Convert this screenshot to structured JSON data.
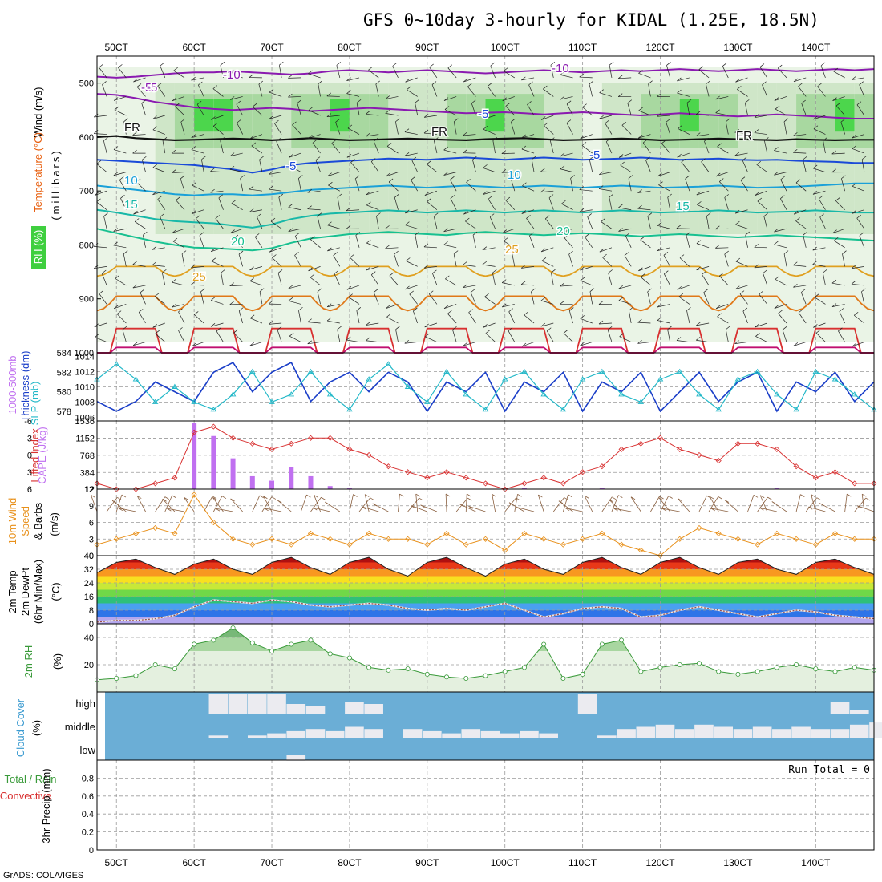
{
  "title": "GFS 0~10day 3-hourly for KIDAL (1.25E, 18.5N)",
  "footer": "GrADS: COLA/IGES",
  "run_total_label": "Run Total = 0",
  "x_ticks": [
    "50CT",
    "60CT",
    "70CT",
    "80CT",
    "90CT",
    "100CT",
    "110CT",
    "120CT",
    "130CT",
    "140CT"
  ],
  "x_tick_hours": [
    6,
    30,
    54,
    78,
    102,
    126,
    150,
    174,
    198,
    222
  ],
  "panel_labels": {
    "upper_wind": "Wind (m/s)",
    "upper_temp": "Temperature (°C)",
    "upper_rh": "RH (%)",
    "upper_pressure": "(millibars)",
    "thick_a": "1000-500mb",
    "thick_b": "Thickness (dm)",
    "slp": "SLP (mb)",
    "li": "Lifted Index",
    "cape": "CAPE (J/kg)",
    "wind10_a": "10m Wind",
    "wind10_b": "Speed",
    "wind10_c": "& Barbs",
    "wind10_d": "(m/s)",
    "t2m_a": "2m Temp",
    "t2m_b": "2m DewPt",
    "t2m_c": "(6hr Min/Max)",
    "t2m_d": "(°C)",
    "rh2_a": "2m RH",
    "rh2_b": "(%)",
    "cloud_a": "Cloud Cover",
    "cloud_b": "(%)",
    "precip_a": "Total / Rain",
    "precip_b": "Convective",
    "precip_c": "3hr Precip (mm)"
  },
  "colors": {
    "thickness": "#1a3ec8",
    "slp": "#22b8c8",
    "li": "#d83030",
    "cape": "#c070f0",
    "wind_speed": "#e8901a",
    "wind_barb": "#8a6040",
    "rh2": "#3a9a3a",
    "cloud_bg": "#6baed6",
    "cloud_fill": "#ebebf0"
  },
  "chart_data": [
    {
      "panel": "upper_air_cross_section",
      "type": "heatmap",
      "title": "Wind (m/s), Temperature (°C), RH (%)",
      "ylabel": "millibars",
      "y_ticks": [
        500,
        600,
        700,
        800,
        900,
        1000
      ],
      "ylim": [
        450,
        1000
      ],
      "isotherm_labels": [
        "-10",
        "-10",
        "-5",
        "-5",
        "-5",
        "-5",
        "FR",
        "FR",
        "FR",
        "-5",
        "5",
        "5",
        "10",
        "10",
        "10",
        "15",
        "15",
        "20",
        "20",
        "25",
        "25"
      ],
      "temperature_levels_hpa": {
        "-10": [
          488,
          490,
          488,
          485,
          482,
          480,
          480,
          478,
          480,
          482,
          484,
          482,
          478,
          476,
          478,
          480,
          478,
          476,
          478,
          480,
          482,
          480,
          478,
          476,
          478,
          480,
          478,
          476,
          478,
          476,
          474,
          476,
          478,
          476,
          474,
          476,
          478,
          476,
          474,
          476,
          474
        ],
        "-5": [
          520,
          522,
          528,
          535,
          540,
          545,
          548,
          550,
          548,
          546,
          548,
          552,
          550,
          548,
          546,
          548,
          550,
          552,
          554,
          556,
          555,
          554,
          556,
          558,
          556,
          554,
          556,
          558,
          560,
          558,
          556,
          558,
          560,
          562,
          560,
          558,
          560,
          562,
          564,
          566,
          566
        ],
        "FR": [
          600,
          598,
          602,
          604,
          606,
          605,
          604,
          603,
          604,
          606,
          604,
          602,
          604,
          606,
          605,
          604,
          603,
          604,
          605,
          606,
          604,
          603,
          602,
          604,
          606,
          605,
          604,
          603,
          604,
          606,
          605,
          604,
          603,
          604,
          605,
          606,
          604,
          605,
          606,
          605,
          605
        ],
        "5": [
          642,
          644,
          646,
          648,
          650,
          652,
          656,
          660,
          666,
          660,
          652,
          648,
          646,
          644,
          642,
          640,
          641,
          642,
          640,
          638,
          640,
          642,
          640,
          638,
          640,
          642,
          641,
          640,
          638,
          640,
          642,
          641,
          640,
          642,
          643,
          642,
          644,
          645,
          646,
          648,
          648
        ],
        "10": [
          690,
          694,
          698,
          702,
          706,
          708,
          706,
          706,
          708,
          706,
          702,
          698,
          696,
          694,
          692,
          690,
          692,
          694,
          692,
          690,
          692,
          694,
          692,
          690,
          692,
          694,
          692,
          690,
          692,
          694,
          693,
          692,
          690,
          692,
          694,
          693,
          692,
          690,
          688,
          686,
          686
        ],
        "15": [
          735,
          740,
          746,
          752,
          756,
          758,
          760,
          764,
          768,
          762,
          752,
          746,
          742,
          740,
          738,
          736,
          738,
          740,
          738,
          736,
          738,
          740,
          738,
          736,
          738,
          740,
          738,
          736,
          738,
          740,
          739,
          738,
          736,
          738,
          740,
          739,
          738,
          736,
          738,
          740,
          740
        ],
        "20": [
          770,
          778,
          786,
          794,
          800,
          805,
          806,
          808,
          810,
          806,
          796,
          788,
          784,
          780,
          778,
          776,
          778,
          780,
          782,
          778,
          776,
          778,
          780,
          782,
          780,
          778,
          780,
          782,
          784,
          782,
          780,
          782,
          784,
          786,
          784,
          782,
          784,
          786,
          788,
          790,
          792
        ]
      },
      "rh_percent": [
        40,
        45,
        50,
        60,
        70,
        80,
        75,
        70,
        65,
        60,
        65,
        70,
        75,
        70,
        65,
        60,
        55,
        60,
        65,
        70,
        75,
        70,
        65,
        60,
        55,
        50,
        55,
        60,
        65,
        70,
        75,
        70,
        65,
        60,
        55,
        60,
        65,
        70,
        75,
        70,
        65
      ]
    },
    {
      "panel": "thickness_slp",
      "type": "line",
      "x": [
        0,
        6,
        12,
        18,
        24,
        30,
        36,
        42,
        48,
        54,
        60,
        66,
        72,
        78,
        84,
        90,
        96,
        102,
        108,
        114,
        120,
        126,
        132,
        138,
        144,
        150,
        156,
        162,
        168,
        174,
        180,
        186,
        192,
        198,
        204,
        210,
        216,
        222,
        228,
        234,
        240
      ],
      "series": [
        {
          "name": "1000-500mb Thickness (dm)",
          "axis": "left",
          "ylim": [
            577,
            584
          ],
          "values": [
            579,
            578,
            579,
            581,
            580,
            579,
            582,
            583,
            580,
            582,
            583,
            579,
            581,
            582,
            580,
            582,
            581,
            578,
            581,
            580,
            582,
            578,
            581,
            580,
            582,
            578,
            581,
            580,
            582,
            578,
            580,
            582,
            579,
            581,
            582,
            578,
            581,
            580,
            582,
            579,
            581
          ]
        },
        {
          "name": "SLP (mb)",
          "axis": "right",
          "ylim": [
            1005.5,
            1014.5
          ],
          "values": [
            1011,
            1013,
            1011,
            1008,
            1010,
            1008,
            1007,
            1009,
            1012,
            1008,
            1009,
            1012,
            1009,
            1007,
            1011,
            1013,
            1010,
            1008,
            1012,
            1009,
            1007,
            1011,
            1012,
            1009,
            1007,
            1011,
            1012,
            1009,
            1008,
            1011,
            1012,
            1009,
            1007,
            1011,
            1012,
            1009,
            1007,
            1012,
            1011,
            1009,
            1007
          ]
        }
      ],
      "left_ticks": [
        578,
        580,
        582,
        584
      ],
      "right_ticks": [
        1006,
        1008,
        1010,
        1012,
        1014
      ]
    },
    {
      "panel": "lifted_index_cape",
      "type": "bar",
      "x": [
        0,
        6,
        12,
        18,
        24,
        30,
        36,
        42,
        48,
        54,
        60,
        66,
        72,
        78,
        84,
        90,
        96,
        102,
        108,
        114,
        120,
        126,
        132,
        138,
        144,
        150,
        156,
        162,
        168,
        174,
        180,
        186,
        192,
        198,
        204,
        210,
        216,
        222,
        228,
        234,
        240
      ],
      "series": [
        {
          "name": "Lifted Index",
          "type": "line",
          "ylim": [
            6,
            -6
          ],
          "values": [
            5,
            6,
            6,
            5,
            4,
            -4,
            -5,
            -3,
            -2,
            -1,
            -2,
            -3,
            -3,
            -1,
            0,
            2,
            3,
            4,
            3,
            4,
            5,
            6,
            5,
            4,
            5,
            3,
            2,
            -1,
            -2,
            -3,
            -1,
            0,
            1,
            -2,
            -2,
            -1,
            2,
            4,
            3,
            5,
            5
          ]
        },
        {
          "name": "CAPE (J/kg)",
          "type": "bar",
          "ylim": [
            12,
            1536
          ],
          "values": [
            0,
            0,
            0,
            0,
            0,
            1500,
            1200,
            700,
            300,
            200,
            500,
            300,
            80,
            30,
            10,
            0,
            0,
            0,
            0,
            0,
            0,
            0,
            30,
            0,
            0,
            0,
            40,
            0,
            0,
            0,
            20,
            0,
            0,
            0,
            0,
            40,
            0,
            0,
            20,
            0,
            0
          ]
        }
      ],
      "left_ticks": [
        -6,
        -3,
        0,
        3,
        6
      ],
      "right_ticks": [
        12,
        384,
        768,
        1152,
        1536
      ]
    },
    {
      "panel": "wind10m",
      "type": "line",
      "x": [
        0,
        6,
        12,
        18,
        24,
        30,
        36,
        42,
        48,
        54,
        60,
        66,
        72,
        78,
        84,
        90,
        96,
        102,
        108,
        114,
        120,
        126,
        132,
        138,
        144,
        150,
        156,
        162,
        168,
        174,
        180,
        186,
        192,
        198,
        204,
        210,
        216,
        222,
        228,
        234,
        240
      ],
      "ylabel": "m/s",
      "ylim": [
        0,
        12
      ],
      "y_ticks": [
        0,
        3,
        6,
        9,
        12
      ],
      "values": [
        2,
        3,
        4,
        5,
        4,
        11,
        6,
        3,
        2,
        3,
        2,
        4,
        3,
        2,
        4,
        3,
        3,
        2,
        4,
        2,
        3,
        1,
        4,
        3,
        2,
        3,
        4,
        2,
        1,
        0,
        3,
        5,
        4,
        3,
        2,
        4,
        3,
        2,
        4,
        3,
        3
      ]
    },
    {
      "panel": "temp2m_dewpoint",
      "type": "area",
      "x": [
        0,
        6,
        12,
        18,
        24,
        30,
        36,
        42,
        48,
        54,
        60,
        66,
        72,
        78,
        84,
        90,
        96,
        102,
        108,
        114,
        120,
        126,
        132,
        138,
        144,
        150,
        156,
        162,
        168,
        174,
        180,
        186,
        192,
        198,
        204,
        210,
        216,
        222,
        228,
        234,
        240
      ],
      "ylabel": "°C",
      "ylim": [
        0,
        40
      ],
      "y_ticks": [
        0,
        8,
        16,
        24,
        32,
        40
      ],
      "series": [
        {
          "name": "2m Temp",
          "values": [
            30,
            36,
            38,
            33,
            29,
            35,
            38,
            32,
            29,
            36,
            39,
            33,
            29,
            36,
            39,
            32,
            28,
            36,
            39,
            33,
            28,
            35,
            38,
            32,
            29,
            36,
            39,
            33,
            29,
            36,
            39,
            33,
            29,
            36,
            38,
            32,
            29,
            36,
            38,
            33,
            29
          ]
        },
        {
          "name": "2m DewPt",
          "values": [
            1,
            2,
            2,
            3,
            5,
            10,
            14,
            13,
            12,
            14,
            13,
            11,
            10,
            11,
            12,
            11,
            9,
            8,
            9,
            8,
            10,
            12,
            8,
            4,
            6,
            9,
            10,
            9,
            4,
            5,
            8,
            10,
            8,
            6,
            4,
            6,
            8,
            7,
            5,
            4,
            3
          ]
        }
      ]
    },
    {
      "panel": "rh2m",
      "type": "line",
      "x": [
        0,
        6,
        12,
        18,
        24,
        30,
        36,
        42,
        48,
        54,
        60,
        66,
        72,
        78,
        84,
        90,
        96,
        102,
        108,
        114,
        120,
        126,
        132,
        138,
        144,
        150,
        156,
        162,
        168,
        174,
        180,
        186,
        192,
        198,
        204,
        210,
        216,
        222,
        228,
        234,
        240
      ],
      "ylabel": "%",
      "ylim": [
        0,
        50
      ],
      "y_ticks": [
        20,
        40
      ],
      "values": [
        9,
        10,
        12,
        20,
        17,
        35,
        38,
        47,
        36,
        30,
        35,
        38,
        28,
        25,
        18,
        16,
        17,
        13,
        11,
        10,
        12,
        15,
        18,
        35,
        10,
        13,
        35,
        38,
        15,
        18,
        20,
        21,
        15,
        13,
        15,
        18,
        20,
        17,
        15,
        18,
        16
      ]
    },
    {
      "panel": "cloud_cover",
      "type": "heatmap",
      "ylabel": "%",
      "levels": [
        "high",
        "middle",
        "low"
      ],
      "x": [
        0,
        6,
        12,
        18,
        24,
        30,
        36,
        42,
        48,
        54,
        60,
        66,
        72,
        78,
        84,
        90,
        96,
        102,
        108,
        114,
        120,
        126,
        132,
        138,
        144,
        150,
        156,
        162,
        168,
        174,
        180,
        186,
        192,
        198,
        204,
        210,
        216,
        222,
        228,
        234,
        240
      ],
      "high": [
        0,
        0,
        0,
        0,
        0,
        0,
        100,
        100,
        100,
        100,
        50,
        40,
        0,
        60,
        50,
        0,
        0,
        0,
        0,
        0,
        0,
        0,
        0,
        0,
        0,
        100,
        0,
        0,
        0,
        0,
        0,
        0,
        0,
        0,
        0,
        0,
        0,
        0,
        60,
        20,
        0
      ],
      "middle": [
        0,
        0,
        0,
        0,
        0,
        0,
        10,
        0,
        10,
        20,
        30,
        40,
        30,
        50,
        40,
        0,
        40,
        30,
        20,
        40,
        30,
        20,
        30,
        20,
        0,
        0,
        10,
        40,
        50,
        60,
        40,
        60,
        50,
        40,
        50,
        40,
        50,
        40,
        40,
        60,
        70
      ],
      "low": [
        0,
        0,
        0,
        0,
        0,
        0,
        0,
        0,
        0,
        0,
        30,
        0,
        0,
        0,
        0,
        0,
        0,
        0,
        0,
        0,
        0,
        0,
        0,
        0,
        0,
        0,
        0,
        0,
        0,
        0,
        0,
        0,
        0,
        0,
        0,
        0,
        0,
        0,
        0,
        0,
        0
      ]
    },
    {
      "panel": "precip3hr",
      "type": "bar",
      "ylabel": "3hr Precip (mm)",
      "ylim": [
        0,
        1
      ],
      "y_ticks": [
        0,
        0.2,
        0.4,
        0.6,
        0.8
      ],
      "run_total": 0,
      "values": [
        0,
        0,
        0,
        0,
        0,
        0,
        0,
        0,
        0,
        0,
        0,
        0,
        0,
        0,
        0,
        0,
        0,
        0,
        0,
        0,
        0,
        0,
        0,
        0,
        0,
        0,
        0,
        0,
        0,
        0,
        0,
        0,
        0,
        0,
        0,
        0,
        0,
        0,
        0,
        0,
        0
      ]
    }
  ]
}
